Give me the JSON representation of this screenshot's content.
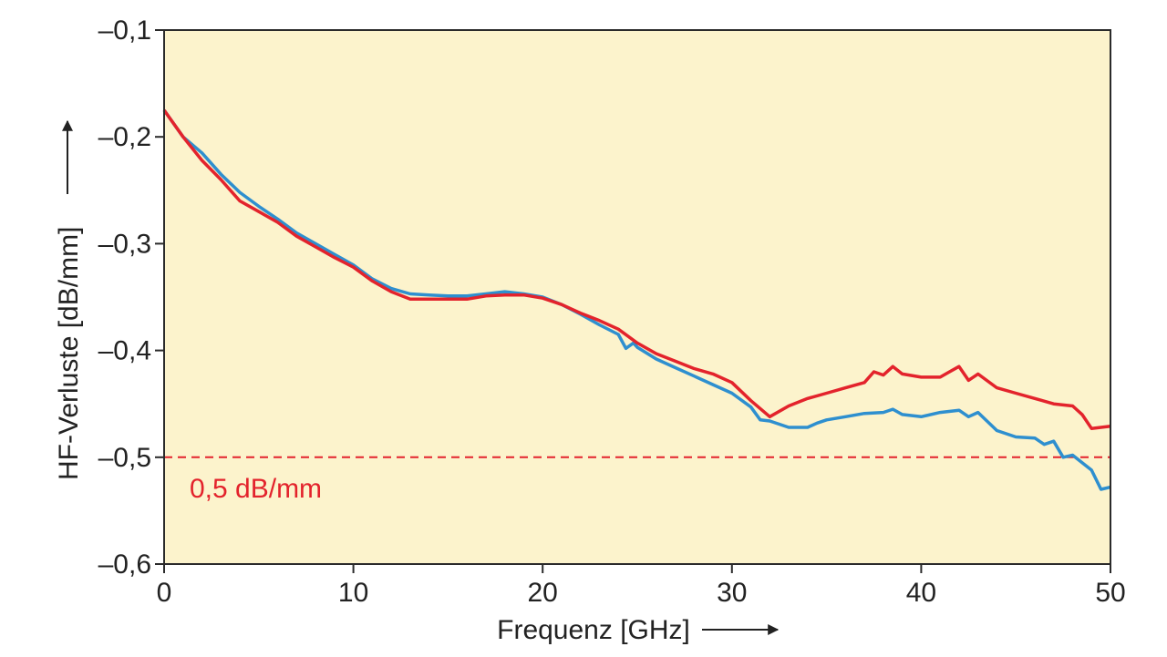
{
  "chart_data": {
    "type": "line",
    "title": "",
    "xlabel": "Frequenz [GHz]",
    "ylabel": "HF-Verluste [dB/mm]",
    "xlim": [
      0,
      50
    ],
    "ylim": [
      -0.6,
      -0.1
    ],
    "x_ticks": [
      0,
      10,
      20,
      30,
      40,
      50
    ],
    "x_tick_labels": [
      "0",
      "10",
      "20",
      "30",
      "40",
      "50"
    ],
    "y_ticks": [
      -0.1,
      -0.2,
      -0.3,
      -0.4,
      -0.5,
      -0.6
    ],
    "y_tick_labels": [
      "–0,1",
      "–0,2",
      "–0,3",
      "–0,4",
      "–0,5",
      "–0,6"
    ],
    "grid": false,
    "background": "#fcf3cc",
    "reference_line": {
      "y": -0.5,
      "color": "#e3232c",
      "style": "dashed",
      "label": "0,5 dB/mm"
    },
    "series": [
      {
        "name": "blue",
        "color": "#2e8fcf",
        "points": [
          [
            0,
            -0.175
          ],
          [
            1,
            -0.2
          ],
          [
            2,
            -0.215
          ],
          [
            3,
            -0.235
          ],
          [
            4,
            -0.252
          ],
          [
            5,
            -0.265
          ],
          [
            6,
            -0.277
          ],
          [
            7,
            -0.29
          ],
          [
            8,
            -0.3
          ],
          [
            9,
            -0.31
          ],
          [
            10,
            -0.32
          ],
          [
            11,
            -0.333
          ],
          [
            12,
            -0.342
          ],
          [
            13,
            -0.347
          ],
          [
            14,
            -0.348
          ],
          [
            15,
            -0.349
          ],
          [
            16,
            -0.349
          ],
          [
            17,
            -0.347
          ],
          [
            18,
            -0.345
          ],
          [
            19,
            -0.347
          ],
          [
            20,
            -0.35
          ],
          [
            21,
            -0.357
          ],
          [
            22,
            -0.366
          ],
          [
            23,
            -0.376
          ],
          [
            24,
            -0.385
          ],
          [
            24.4,
            -0.398
          ],
          [
            24.8,
            -0.393
          ],
          [
            25,
            -0.397
          ],
          [
            26,
            -0.408
          ],
          [
            27,
            -0.416
          ],
          [
            28,
            -0.424
          ],
          [
            29,
            -0.432
          ],
          [
            30,
            -0.44
          ],
          [
            31,
            -0.453
          ],
          [
            31.5,
            -0.465
          ],
          [
            32,
            -0.466
          ],
          [
            33,
            -0.472
          ],
          [
            34,
            -0.472
          ],
          [
            34.5,
            -0.468
          ],
          [
            35,
            -0.465
          ],
          [
            36,
            -0.462
          ],
          [
            37,
            -0.459
          ],
          [
            38,
            -0.458
          ],
          [
            38.5,
            -0.455
          ],
          [
            39,
            -0.46
          ],
          [
            40,
            -0.462
          ],
          [
            41,
            -0.458
          ],
          [
            42,
            -0.456
          ],
          [
            42.5,
            -0.462
          ],
          [
            43,
            -0.458
          ],
          [
            44,
            -0.475
          ],
          [
            45,
            -0.481
          ],
          [
            46,
            -0.482
          ],
          [
            46.5,
            -0.488
          ],
          [
            47,
            -0.485
          ],
          [
            47.5,
            -0.5
          ],
          [
            48,
            -0.498
          ],
          [
            49,
            -0.512
          ],
          [
            49.5,
            -0.53
          ],
          [
            50,
            -0.528
          ]
        ]
      },
      {
        "name": "red",
        "color": "#e3232c",
        "points": [
          [
            0,
            -0.175
          ],
          [
            1,
            -0.2
          ],
          [
            2,
            -0.222
          ],
          [
            3,
            -0.24
          ],
          [
            4,
            -0.26
          ],
          [
            5,
            -0.27
          ],
          [
            6,
            -0.28
          ],
          [
            7,
            -0.293
          ],
          [
            8,
            -0.303
          ],
          [
            9,
            -0.313
          ],
          [
            10,
            -0.322
          ],
          [
            11,
            -0.335
          ],
          [
            12,
            -0.345
          ],
          [
            13,
            -0.352
          ],
          [
            14,
            -0.352
          ],
          [
            15,
            -0.352
          ],
          [
            16,
            -0.352
          ],
          [
            17,
            -0.349
          ],
          [
            18,
            -0.348
          ],
          [
            19,
            -0.348
          ],
          [
            20,
            -0.351
          ],
          [
            21,
            -0.357
          ],
          [
            22,
            -0.365
          ],
          [
            23,
            -0.372
          ],
          [
            24,
            -0.38
          ],
          [
            25,
            -0.393
          ],
          [
            26,
            -0.403
          ],
          [
            27,
            -0.41
          ],
          [
            28,
            -0.417
          ],
          [
            29,
            -0.422
          ],
          [
            30,
            -0.43
          ],
          [
            31,
            -0.447
          ],
          [
            32,
            -0.462
          ],
          [
            33,
            -0.452
          ],
          [
            34,
            -0.445
          ],
          [
            35,
            -0.44
          ],
          [
            36,
            -0.435
          ],
          [
            37,
            -0.43
          ],
          [
            37.5,
            -0.42
          ],
          [
            38,
            -0.423
          ],
          [
            38.5,
            -0.415
          ],
          [
            39,
            -0.422
          ],
          [
            40,
            -0.425
          ],
          [
            41,
            -0.425
          ],
          [
            41.5,
            -0.42
          ],
          [
            42,
            -0.415
          ],
          [
            42.5,
            -0.428
          ],
          [
            43,
            -0.422
          ],
          [
            44,
            -0.435
          ],
          [
            45,
            -0.44
          ],
          [
            46,
            -0.445
          ],
          [
            47,
            -0.45
          ],
          [
            48,
            -0.452
          ],
          [
            48.5,
            -0.46
          ],
          [
            49,
            -0.473
          ],
          [
            50,
            -0.471
          ]
        ]
      }
    ]
  }
}
